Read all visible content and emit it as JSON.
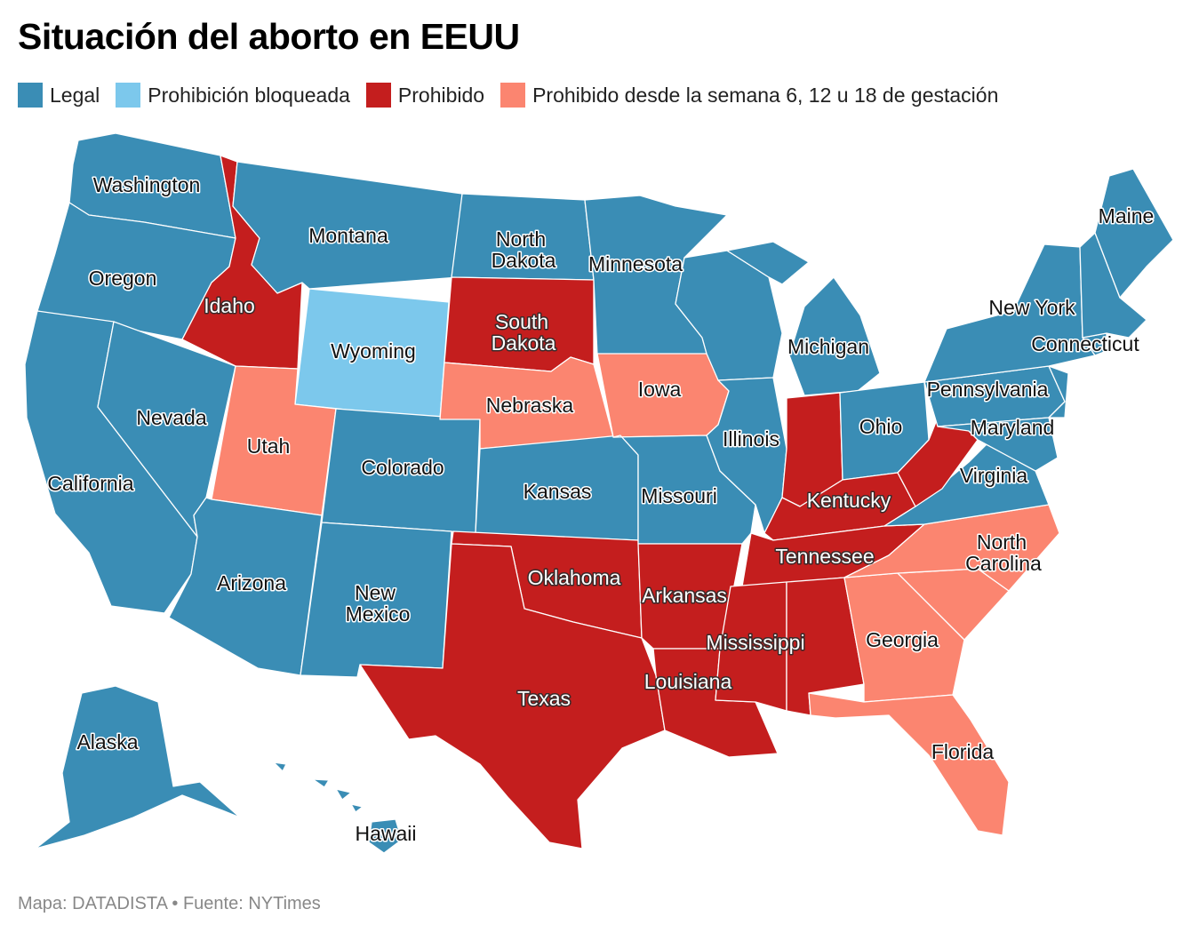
{
  "title": "Situación del aborto en EEUU",
  "legend": [
    {
      "key": "legal",
      "label": "Legal"
    },
    {
      "key": "blocked",
      "label": "Prohibición bloqueada"
    },
    {
      "key": "banned",
      "label": "Prohibido"
    },
    {
      "key": "weeks",
      "label": "Prohibido desde la semana 6, 12 u 18 de gestación"
    }
  ],
  "colors": {
    "legal": "#3a8db5",
    "blocked": "#7cc8ec",
    "banned": "#c41e1e",
    "weeks": "#fb8570"
  },
  "states": {
    "washington": "Washington",
    "oregon": "Oregon",
    "california": "California",
    "idaho": "Idaho",
    "nevada": "Nevada",
    "montana": "Montana",
    "wyoming": "Wyoming",
    "utah": "Utah",
    "arizona": "Arizona",
    "colorado": "Colorado",
    "new_mexico_1": "New",
    "new_mexico_2": "Mexico",
    "north_dakota_1": "North",
    "north_dakota_2": "Dakota",
    "south_dakota_1": "South",
    "south_dakota_2": "Dakota",
    "nebraska": "Nebraska",
    "kansas": "Kansas",
    "oklahoma": "Oklahoma",
    "texas": "Texas",
    "minnesota": "Minnesota",
    "iowa": "Iowa",
    "missouri": "Missouri",
    "arkansas": "Arkansas",
    "louisiana": "Louisiana",
    "wisconsin": "",
    "illinois": "Illinois",
    "michigan": "Michigan",
    "indiana": "",
    "ohio": "Ohio",
    "kentucky": "Kentucky",
    "tennessee": "Tennessee",
    "mississippi": "Mississippi",
    "alabama": "",
    "georgia": "Georgia",
    "florida": "Florida",
    "south_carolina": "",
    "north_carolina_1": "North",
    "north_carolina_2": "Carolina",
    "virginia": "Virginia",
    "west_virginia": "",
    "pennsylvania": "Pennsylvania",
    "new_york": "New York",
    "maryland": "Maryland",
    "connecticut": "Connecticut",
    "maine": "Maine",
    "alaska": "Alaska",
    "hawaii": "Hawaii"
  },
  "status": {
    "washington": "legal",
    "oregon": "legal",
    "california": "legal",
    "idaho": "banned",
    "nevada": "legal",
    "montana": "legal",
    "wyoming": "blocked",
    "utah": "weeks",
    "arizona": "legal",
    "colorado": "legal",
    "new_mexico": "legal",
    "north_dakota": "legal",
    "south_dakota": "banned",
    "nebraska": "weeks",
    "kansas": "legal",
    "oklahoma": "banned",
    "texas": "banned",
    "minnesota": "legal",
    "iowa": "weeks",
    "missouri": "legal",
    "arkansas": "banned",
    "louisiana": "banned",
    "wisconsin": "legal",
    "illinois": "legal",
    "michigan": "legal",
    "indiana": "banned",
    "ohio": "legal",
    "kentucky": "banned",
    "tennessee": "banned",
    "mississippi": "banned",
    "alabama": "banned",
    "georgia": "weeks",
    "florida": "weeks",
    "south_carolina": "weeks",
    "north_carolina": "weeks",
    "virginia": "legal",
    "west_virginia": "banned",
    "pennsylvania": "legal",
    "new_york": "legal",
    "maryland": "legal",
    "connecticut": "legal",
    "maine": "legal",
    "new_england": "legal",
    "new_jersey": "legal",
    "delaware": "legal",
    "alaska": "legal",
    "hawaii": "legal"
  },
  "source": "Mapa: DATADISTA • Fuente: NYTimes"
}
